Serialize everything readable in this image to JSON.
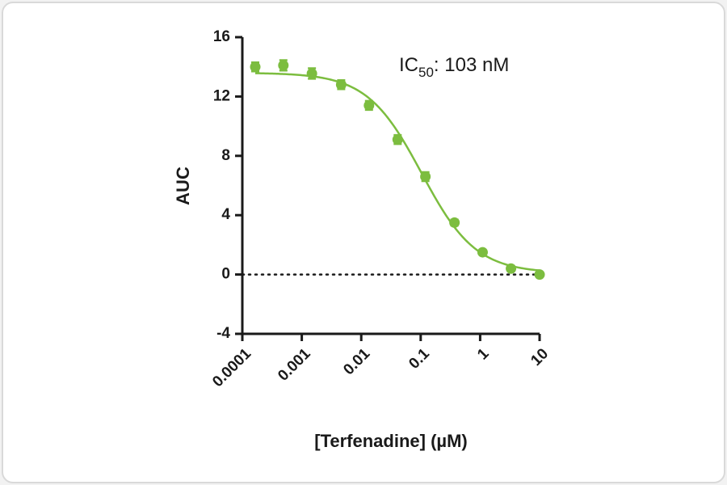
{
  "chart_data": {
    "type": "scatter",
    "x_label": "[Terfenadine] (µM)",
    "y_label": "AUC",
    "annotation": {
      "prefix": "IC",
      "subscript": "50",
      "text": ": 103 nM"
    },
    "x": [
      0.000165,
      0.00049,
      0.00148,
      0.0046,
      0.0135,
      0.041,
      0.12,
      0.37,
      1.1,
      3.3,
      10
    ],
    "series": [
      {
        "name": "Terfenadine",
        "color": "#7cbd3f",
        "values": [
          14.0,
          14.1,
          13.55,
          12.8,
          11.4,
          9.1,
          6.6,
          3.5,
          1.5,
          0.4,
          0.0
        ],
        "errors": [
          0.3,
          0.35,
          0.35,
          0.3,
          0.3,
          0.3,
          0.3,
          0.2,
          0.15,
          0.1,
          0.1
        ]
      }
    ],
    "fit": {
      "top": 13.6,
      "bottom": 0.1,
      "ic50": 0.103,
      "hill": 0.95
    },
    "reference_line": 0,
    "xscale": "log",
    "xlim": [
      0.0001,
      10
    ],
    "xticks": [
      0.0001,
      0.001,
      0.01,
      0.1,
      1,
      10
    ],
    "ylim": [
      -4,
      16
    ],
    "yticks": [
      -4,
      0,
      4,
      8,
      12,
      16
    ]
  }
}
